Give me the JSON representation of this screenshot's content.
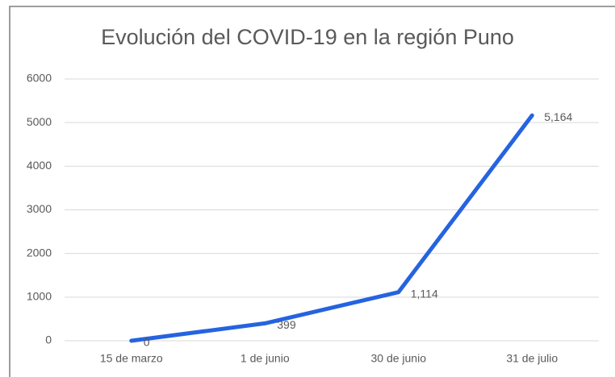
{
  "chart_data": {
    "type": "line",
    "title": "Evolución del COVID-19 en la región Puno",
    "categories": [
      "15 de marzo",
      "1 de junio",
      "30 de junio",
      "31 de julio"
    ],
    "values": [
      0,
      399,
      1114,
      5164
    ],
    "value_labels": [
      "0",
      "399",
      "1,114",
      "5,164"
    ],
    "color": "#2563e0",
    "ylim": [
      0,
      6000
    ],
    "yticks": [
      0,
      1000,
      2000,
      3000,
      4000,
      5000,
      6000
    ],
    "grid": true
  }
}
